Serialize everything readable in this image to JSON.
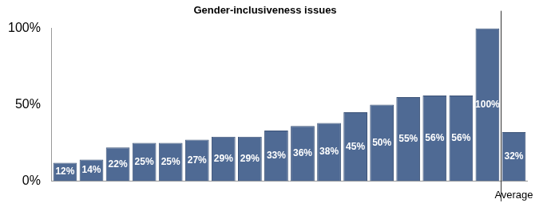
{
  "chart_data": {
    "type": "bar",
    "title": "Gender-inclusiveness issues",
    "categories": [
      null,
      null,
      null,
      null,
      null,
      null,
      null,
      null,
      null,
      null,
      null,
      null,
      null,
      null,
      null,
      null,
      null,
      "Average"
    ],
    "values": [
      12,
      14,
      22,
      25,
      25,
      27,
      29,
      29,
      33,
      36,
      38,
      45,
      50,
      55,
      56,
      56,
      100,
      32
    ],
    "value_labels": [
      "12%",
      "14%",
      "22%",
      "25%",
      "25%",
      "27%",
      "29%",
      "29%",
      "33%",
      "36%",
      "38%",
      "45%",
      "50%",
      "55%",
      "56%",
      "56%",
      "100%",
      "32%"
    ],
    "data_labels": true,
    "color": "#4f6a94",
    "ylim": [
      0,
      100
    ],
    "yticks": [
      {
        "value": 0,
        "label": "0%"
      },
      {
        "value": 50,
        "label": "50%"
      },
      {
        "value": 100,
        "label": "100%"
      }
    ],
    "grid": false
  }
}
